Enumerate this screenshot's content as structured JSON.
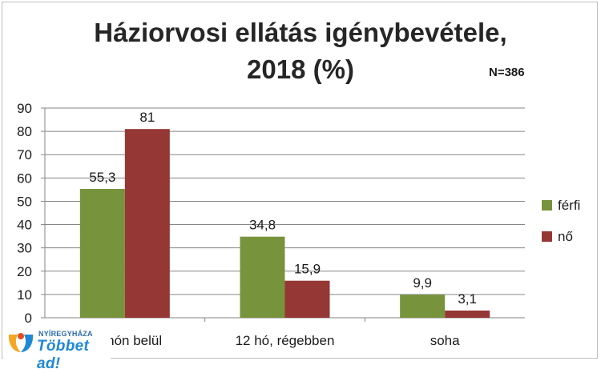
{
  "title": {
    "line1": "Háziorvosi ellátás igénybevétele,",
    "line2": "2018 (%)"
  },
  "n_label": "N=386",
  "colors": {
    "ferfi": "#77933c",
    "no": "#953735",
    "axis": "#868686",
    "grid": "#868686",
    "text": "#1a1a1a"
  },
  "chart_data": {
    "type": "bar",
    "categories": [
      "12 hón belül",
      "12 hó, régebben",
      "soha"
    ],
    "series": [
      {
        "name": "férfi",
        "values": [
          55.3,
          34.8,
          9.9
        ],
        "labels": [
          "55,3",
          "34,8",
          "9,9"
        ]
      },
      {
        "name": "nő",
        "values": [
          81,
          15.9,
          3.1
        ],
        "labels": [
          "81",
          "15,9",
          "3,1"
        ]
      }
    ],
    "yticks": [
      0,
      10,
      20,
      30,
      40,
      50,
      60,
      70,
      80,
      90
    ],
    "ylim": [
      0,
      90
    ],
    "grid": true,
    "legend": "right"
  },
  "logo": {
    "city": "NYÍREGYHÁZA",
    "slogan": "Többet ad!"
  }
}
